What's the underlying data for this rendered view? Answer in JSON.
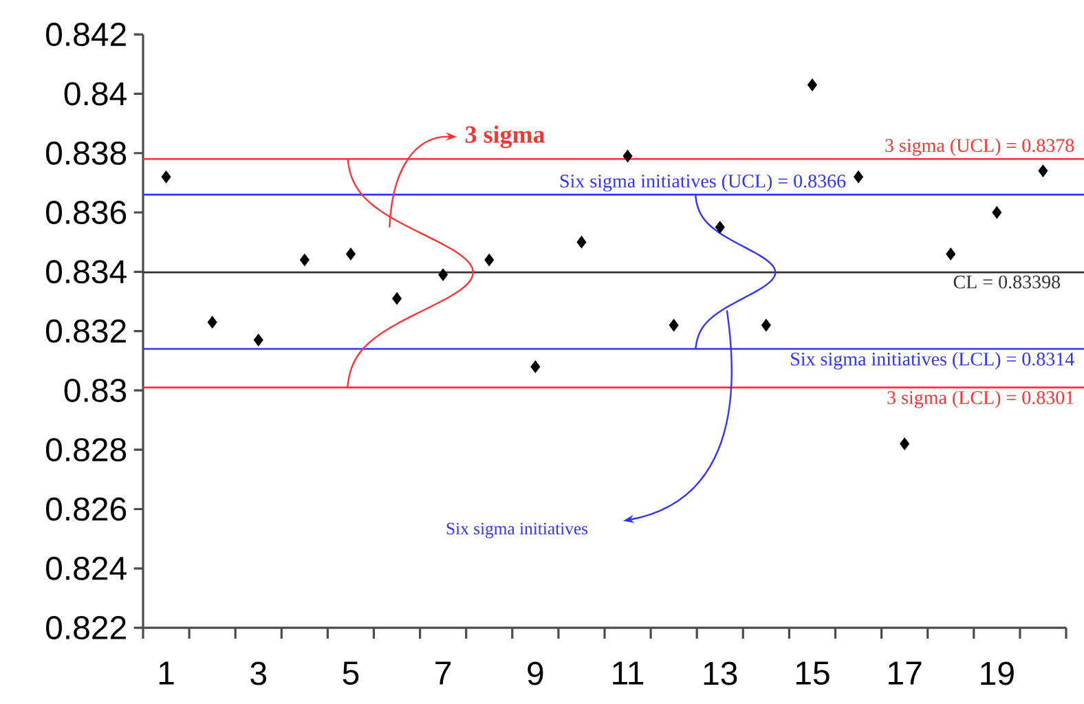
{
  "chart_data": {
    "type": "scatter",
    "marker": "diamond",
    "color": "#000000",
    "grid": false,
    "categories": [
      "1",
      null,
      "3",
      null,
      "5",
      null,
      "7",
      null,
      "9",
      null,
      "11",
      null,
      "13",
      null,
      "15",
      null,
      "17",
      null,
      "19",
      null
    ],
    "values": [
      0.8372,
      0.8323,
      0.8317,
      0.8344,
      0.8346,
      0.8331,
      0.8339,
      0.8344,
      0.8308,
      0.835,
      0.8379,
      0.8322,
      0.8355,
      0.8322,
      0.8403,
      0.8372,
      0.8282,
      0.8346,
      0.836,
      0.8374
    ],
    "ylim": [
      0.822,
      0.842
    ],
    "yticks": [
      0.822,
      0.824,
      0.826,
      0.828,
      0.83,
      0.832,
      0.834,
      0.836,
      0.838,
      0.84,
      0.842
    ],
    "ref_lines": [
      {
        "axis": "y",
        "value": 0.8378,
        "label": "3 sigma (UCL) = 0.8378",
        "color": "#ff3333"
      },
      {
        "axis": "y",
        "value": 0.8366,
        "label": "Six sigma initiatives (UCL) = 0.8366",
        "color": "#3333ff"
      },
      {
        "axis": "y",
        "value": 0.83398,
        "label": "CL = 0.83398",
        "color": "#333333"
      },
      {
        "axis": "y",
        "value": 0.8314,
        "label": "Six sigma initiatives (LCL) = 0.8314",
        "color": "#3333ff"
      },
      {
        "axis": "y",
        "value": 0.8301,
        "label": "3 sigma (LCL) = 0.8301",
        "color": "#ff3333"
      }
    ],
    "annotations": [
      "3 sigma",
      "Six sigma initiatives"
    ]
  }
}
